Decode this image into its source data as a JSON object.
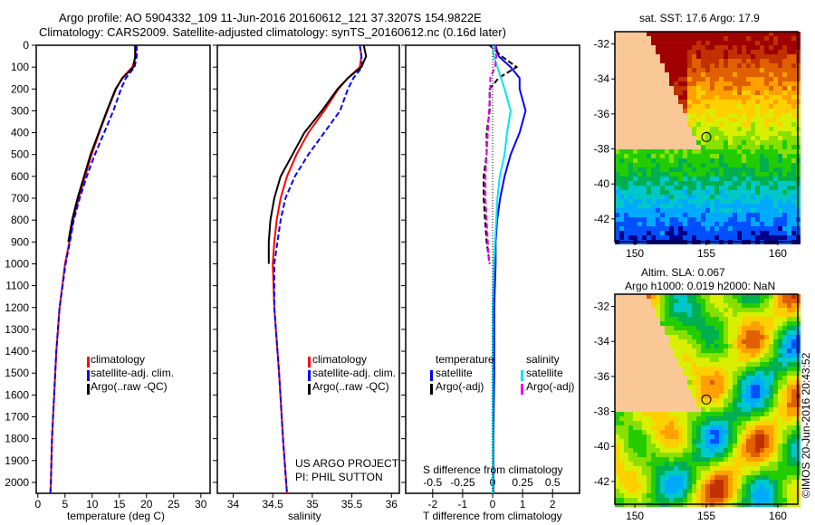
{
  "title": {
    "line1": "Argo profile: AO 5904332_109 11-Jun-2016 20160612_121 37.3207S 154.9822E",
    "line2": "Climatology: CARS2009. Satellite-adjusted climatology: synTS_20160612.nc (0.16d later)"
  },
  "colors": {
    "climatology": "#ff0000",
    "satellite": "#0000ff",
    "argo": "#000000",
    "sal_satellite": "#00e5ee",
    "sal_argo": "#ee00ee"
  },
  "chart_data": [
    {
      "type": "line",
      "name": "temperature",
      "xlabel": "temperature (deg C)",
      "xlim": [
        -0.3,
        31.7
      ],
      "ylim": [
        2050,
        0
      ],
      "xticks": [
        "0",
        "5",
        "10",
        "15",
        "20",
        "25",
        "30"
      ],
      "xtick_values": [
        0,
        5,
        10,
        15,
        20,
        25,
        30
      ],
      "yticks": [
        "0",
        "100",
        "200",
        "300",
        "400",
        "500",
        "600",
        "700",
        "800",
        "900",
        "1000",
        "1100",
        "1200",
        "1300",
        "1400",
        "1500",
        "1600",
        "1700",
        "1800",
        "1900",
        "2000"
      ],
      "legend": [
        "climatology",
        "satellite-adj. clim.",
        "Argo(..raw -QC)"
      ],
      "depth": [
        0,
        50,
        100,
        150,
        200,
        300,
        400,
        500,
        600,
        700,
        800,
        900,
        1000,
        1200,
        1400,
        1600,
        1800,
        2000,
        2050
      ],
      "series": [
        {
          "name": "climatology",
          "values": [
            18,
            18,
            17.4,
            15.5,
            14.4,
            12.8,
            11.3,
            9.9,
            8.7,
            7.5,
            6.5,
            5.8,
            5.0,
            4.0,
            3.4,
            3.0,
            2.6,
            2.4,
            2.3
          ]
        },
        {
          "name": "satellite-adj. clim.",
          "values": [
            18.2,
            18.2,
            17.8,
            16.2,
            15.3,
            13.9,
            12.2,
            10.5,
            9.0,
            7.7,
            6.6,
            5.9,
            5.1,
            4.0,
            3.4,
            3.0,
            2.6,
            2.4,
            2.3
          ]
        },
        {
          "name": "Argo(..raw -QC)",
          "values": [
            17.9,
            17.9,
            17.6,
            15.6,
            14.3,
            12.7,
            11.2,
            9.7,
            8.5,
            7.3,
            6.3,
            5.6,
            null,
            null,
            null,
            null,
            null,
            null,
            null
          ]
        }
      ]
    },
    {
      "type": "line",
      "name": "salinity",
      "xlabel": "salinity",
      "xlim": [
        33.8,
        36.1
      ],
      "ylim": [
        2050,
        0
      ],
      "xticks": [
        "34",
        "34.5",
        "35",
        "35.5",
        "36"
      ],
      "xtick_values": [
        34,
        34.5,
        35,
        35.5,
        36
      ],
      "legend": [
        "climatology",
        "satellite-adj. clim.",
        "Argo(..raw -QC)"
      ],
      "annotation": [
        "US ARGO PROJECT",
        "PI: PHIL SUTTON"
      ],
      "depth": [
        0,
        50,
        100,
        150,
        200,
        300,
        400,
        500,
        600,
        700,
        800,
        900,
        1000,
        1200,
        1500,
        1800,
        2050
      ],
      "series": [
        {
          "name": "climatology",
          "values": [
            35.6,
            35.62,
            35.6,
            35.45,
            35.33,
            35.15,
            34.95,
            34.8,
            34.68,
            34.6,
            34.55,
            34.52,
            34.5,
            34.52,
            34.58,
            34.63,
            34.68
          ]
        },
        {
          "name": "satellite-adj. clim.",
          "values": [
            35.6,
            35.62,
            35.63,
            35.52,
            35.45,
            35.35,
            35.15,
            34.95,
            34.78,
            34.66,
            34.6,
            34.56,
            34.52,
            34.52,
            34.58,
            34.63,
            34.68
          ]
        },
        {
          "name": "Argo(..raw -QC)",
          "values": [
            35.65,
            35.68,
            35.62,
            35.45,
            35.32,
            35.12,
            34.9,
            34.75,
            34.6,
            34.52,
            34.47,
            34.45,
            34.45,
            null,
            null,
            null,
            null
          ]
        }
      ]
    },
    {
      "type": "line",
      "name": "difference",
      "xlabel": "T difference from climatology",
      "x2label": "S difference from climatology",
      "xlim": [
        -2.9,
        2.9
      ],
      "ylim": [
        2050,
        0
      ],
      "xticks": [
        "-2",
        "-1",
        "0",
        "1",
        "2"
      ],
      "xtick_values": [
        -2,
        -1,
        0,
        1,
        2
      ],
      "x2ticks": [
        "-0.5",
        "-0.25",
        "0",
        "0.25",
        "0.5"
      ],
      "x2tick_values": [
        -0.5,
        -0.25,
        0,
        0.25,
        0.5
      ],
      "legend": {
        "temperature_header": "temperature",
        "salinity_header": "salinity",
        "items": [
          "satellite",
          "Argo(-adj)",
          "satellite",
          "Argo(-adj)"
        ]
      },
      "depth": [
        0,
        50,
        100,
        150,
        200,
        300,
        400,
        500,
        600,
        700,
        800,
        900,
        1000,
        1200,
        1500,
        1800,
        2050
      ],
      "series": [
        {
          "name": "T satellite",
          "values": [
            0.1,
            0.2,
            0.6,
            0.9,
            0.9,
            1.1,
            0.9,
            0.6,
            0.4,
            0.25,
            0.15,
            0.1,
            0.1,
            0.05,
            0.05,
            0.02,
            0.02
          ]
        },
        {
          "name": "T Argo(-adj)",
          "values": [
            -0.1,
            0.3,
            0.8,
            0.2,
            -0.1,
            -0.1,
            -0.2,
            -0.2,
            -0.3,
            -0.3,
            -0.25,
            -0.2,
            -0.1,
            null,
            null,
            null,
            null
          ]
        },
        {
          "name": "S satellite",
          "values": [
            0,
            0.01,
            0.04,
            0.07,
            0.1,
            0.15,
            0.12,
            0.1,
            0.06,
            0.04,
            0.03,
            0.02,
            0.01,
            0,
            0,
            0,
            0
          ]
        },
        {
          "name": "S Argo(-adj)",
          "values": [
            0.02,
            0.03,
            0.02,
            -0.02,
            -0.02,
            -0.03,
            -0.04,
            -0.05,
            -0.06,
            -0.06,
            -0.05,
            -0.04,
            -0.03,
            null,
            null,
            null,
            null
          ]
        }
      ]
    }
  ],
  "maps": {
    "sst": {
      "title": "sat. SST: 17.6 Argo: 17.9",
      "xticks": [
        "150",
        "155",
        "160"
      ],
      "yticks": [
        "-32",
        "-34",
        "-36",
        "-38",
        "-40",
        "-42"
      ]
    },
    "sla": {
      "title1": "Altim. SLA: 0.067",
      "title2": "Argo h1000: 0.019 h2000: NaN",
      "xticks": [
        "150",
        "155",
        "160"
      ],
      "yticks": [
        "-32",
        "-34",
        "-36",
        "-38",
        "-40",
        "-42"
      ]
    },
    "credit": "©IMOS 20-Jun-2016 20:43:52"
  }
}
